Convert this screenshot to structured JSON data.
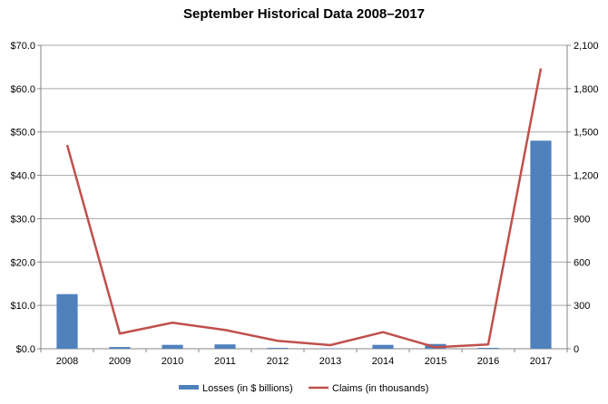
{
  "chart_data": {
    "type": "bar",
    "title": "September Historical Data 2008–2017",
    "categories": [
      "2008",
      "2009",
      "2010",
      "2011",
      "2012",
      "2013",
      "2014",
      "2015",
      "2016",
      "2017"
    ],
    "series": [
      {
        "name": "Losses (in $ billions)",
        "type": "bar",
        "axis": "left",
        "color": "#4f81bd",
        "values": [
          12.6,
          0.4,
          0.9,
          1.0,
          0.2,
          0.1,
          0.9,
          1.1,
          0.2,
          48.0
        ]
      },
      {
        "name": "Claims (in thousands)",
        "type": "line",
        "axis": "right",
        "color": "#c0504d",
        "values": [
          1410,
          105,
          180,
          130,
          55,
          25,
          115,
          10,
          30,
          1940
        ]
      }
    ],
    "y_left": {
      "ylim": [
        0,
        70
      ],
      "ticks": [
        0,
        10,
        20,
        30,
        40,
        50,
        60,
        70
      ],
      "tick_labels": [
        "$0.0",
        "$10.0",
        "$20.0",
        "$30.0",
        "$40.0",
        "$50.0",
        "$60.0",
        "$70.0"
      ]
    },
    "y_right": {
      "ylim": [
        0,
        2100
      ],
      "ticks": [
        0,
        300,
        600,
        900,
        1200,
        1500,
        1800,
        2100
      ],
      "tick_labels": [
        "0",
        "300",
        "600",
        "900",
        "1,200",
        "1,500",
        "1,800",
        "2,100"
      ]
    },
    "grid": true,
    "gridline_color": "#a6a6a6",
    "legend_position": "bottom"
  }
}
